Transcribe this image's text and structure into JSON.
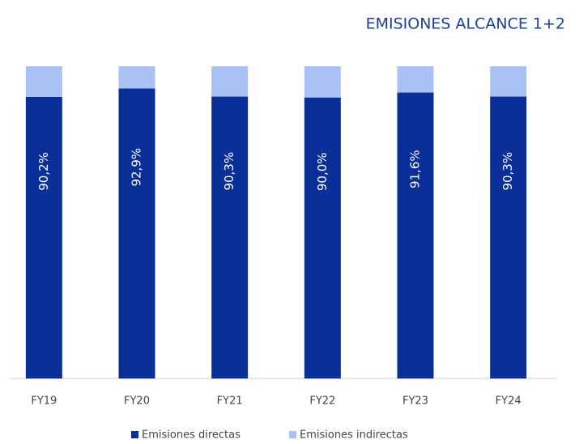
{
  "chart_data": {
    "type": "bar",
    "stacked": true,
    "title": "EMISIONES ALCANCE 1+2",
    "categories": [
      "FY19",
      "FY20",
      "FY21",
      "FY22",
      "FY23",
      "FY24"
    ],
    "series": [
      {
        "name": "Emisiones directas",
        "color": "#0a2f98",
        "values": [
          90.2,
          92.9,
          90.3,
          90.0,
          91.6,
          90.3
        ],
        "value_labels": [
          "90,2%",
          "92,9%",
          "90,3%",
          "90,0%",
          "91,6%",
          "90,3%"
        ]
      },
      {
        "name": "Emisiones indirectas",
        "color": "#a9c1f5",
        "values": [
          9.8,
          7.1,
          9.7,
          10.0,
          8.4,
          9.7
        ]
      }
    ],
    "ylim": [
      0,
      100
    ],
    "legend": "bottom"
  }
}
